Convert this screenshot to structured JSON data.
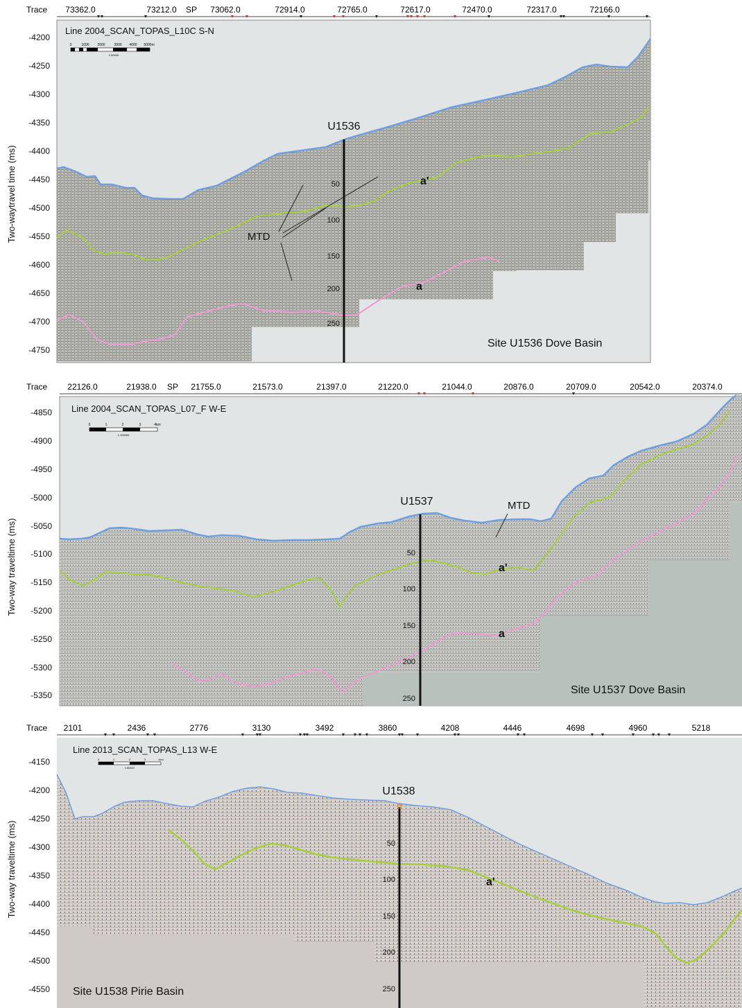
{
  "panels": [
    {
      "trace_label": "Trace",
      "sp_label": "SP",
      "traces": [
        "73362.0",
        "73212.0",
        "73062.0",
        "72914.0",
        "72765.0",
        "72617.0",
        "72470.0",
        "72317.0",
        "72166.0"
      ],
      "line_title": "Line 2004_SCAN_TOPAS_L10C   S-N",
      "scale_ticks": [
        "0",
        "1000",
        "2000",
        "3000",
        "4000",
        "5000m"
      ],
      "scale_ratio": "1:90000",
      "ylabel": "Two-waytravel time (ms)",
      "yticks": [
        "-4200",
        "-4250",
        "-4300",
        "-4350",
        "-4400",
        "-4450",
        "-4500",
        "-4550",
        "-4600",
        "-4650",
        "-4700",
        "-4750"
      ],
      "site_label": "U1536",
      "depth_ticks": [
        "50",
        "100",
        "150",
        "200",
        "250"
      ],
      "reflector_upper": "a'",
      "reflector_lower": "a",
      "mtd_label": "MTD",
      "caption": "Site U1536 Dove Basin"
    },
    {
      "trace_label": "Trace",
      "sp_label": "SP",
      "traces": [
        "22126.0",
        "21938.0",
        "21755.0",
        "21573.0",
        "21397.0",
        "21220.0",
        "21044.0",
        "20876.0",
        "20709.0",
        "20542.0",
        "20374.0"
      ],
      "line_title": "Line 2004_SCAN_TOPAS_L07_F  W-E",
      "scale_ticks": [
        "0",
        "1",
        "2",
        "3",
        "4km"
      ],
      "scale_ratio": "1:100000",
      "ylabel": "Two-way traveltime (ms)",
      "yticks": [
        "-4850",
        "-4900",
        "-4950",
        "-5000",
        "-5050",
        "-5100",
        "-5150",
        "-5200",
        "-5250",
        "-5300",
        "-5350"
      ],
      "site_label": "U1537",
      "depth_ticks": [
        "50",
        "100",
        "150",
        "200",
        "250"
      ],
      "reflector_upper": "a'",
      "reflector_lower": "a",
      "mtd_label": "MTD",
      "caption": "Site U1537 Dove Basin"
    },
    {
      "trace_label": "Trace",
      "traces": [
        "2101",
        "2436",
        "2776",
        "3130",
        "3492",
        "3860",
        "4208",
        "4446",
        "4698",
        "4960",
        "5218"
      ],
      "line_title": "Line 2013_SCAN_TOPAS_L13   W-E",
      "scale_ticks": [
        "0",
        "1",
        "2",
        "3",
        "4km"
      ],
      "scale_ratio": "1:65437",
      "ylabel": "Two-way traveltime (ms)",
      "yticks": [
        "-4150",
        "-4200",
        "-4250",
        "-4300",
        "-4350",
        "-4400",
        "-4450",
        "-4500",
        "-4550"
      ],
      "site_label": "U1538",
      "depth_ticks": [
        "50",
        "100",
        "150",
        "200",
        "250"
      ],
      "reflector_upper": "a'",
      "caption": "Site U1538 Pirie Basin"
    }
  ],
  "colors": {
    "seafloor": "#6f9fde",
    "reflector_a_prime": "#a6cf3c",
    "reflector_a": "#ef9ad4",
    "sediment": "#c1c3bf",
    "water": "#e2e5e6",
    "panel3_fill": "#cfcac6",
    "panel2_fill": "#b8c1bc",
    "borehole": "#111111"
  }
}
